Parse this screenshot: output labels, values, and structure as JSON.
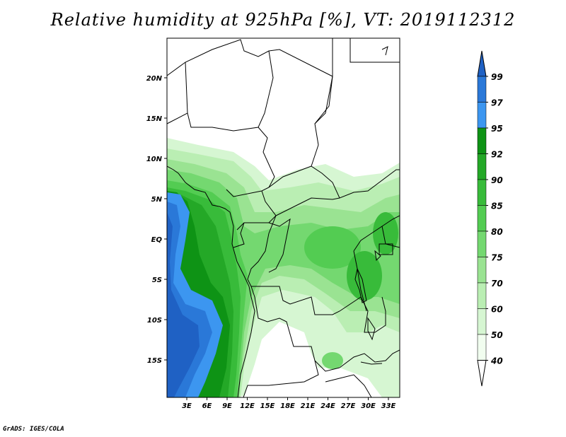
{
  "title": "Relative humidity at 925hPa [%], VT: 2019112312",
  "credit": "GrADS: IGES/COLA",
  "map": {
    "lat_labels": [
      "20N",
      "15N",
      "10N",
      "5N",
      "EQ",
      "5S",
      "10S",
      "15S"
    ],
    "lon_labels": [
      "3E",
      "6E",
      "9E",
      "12E",
      "15E",
      "18E",
      "21E",
      "24E",
      "27E",
      "30E",
      "33E"
    ]
  },
  "colorbar": {
    "labels": [
      "99",
      "97",
      "95",
      "92",
      "90",
      "85",
      "80",
      "75",
      "70",
      "60",
      "50",
      "40"
    ],
    "colors": [
      "#1f61c4",
      "#2a78d8",
      "#3c96f0",
      "#0e9315",
      "#24a827",
      "#38bb3a",
      "#53cc52",
      "#74d870",
      "#9ae392",
      "#baeeb3",
      "#d6f6d2",
      "#f1fdef"
    ]
  }
}
